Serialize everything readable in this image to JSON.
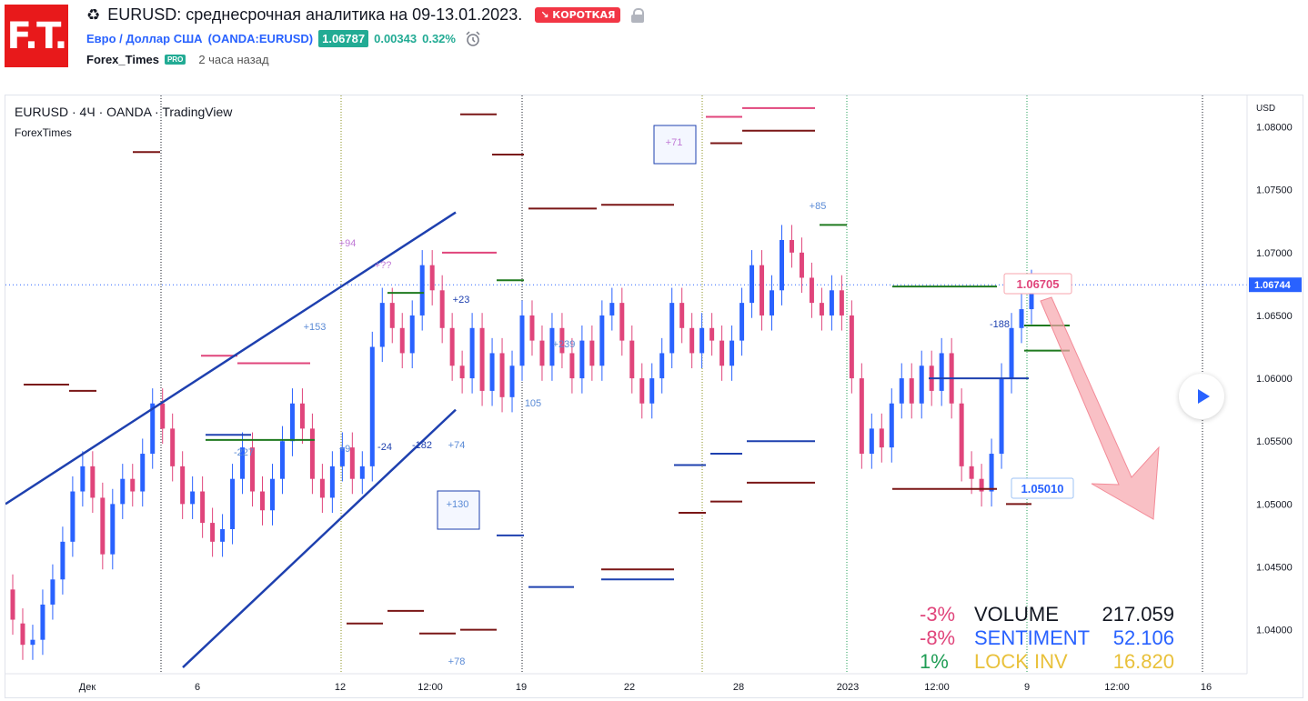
{
  "header": {
    "logo_text": "F.T.",
    "recycle_icon": "♻",
    "title": "EURUSD: среднесрочная аналитика на 09-13.01.2023.",
    "badge": "↘ КОРОТКАЯ",
    "symbol_name": "Евро / Доллар США",
    "symbol_code": "(OANDA:EURUSD)",
    "price": "1.06787",
    "change": "0.00343",
    "change_pct": "0.32%",
    "author": "Forex_Times",
    "pro_badge": "PRO",
    "time_ago": "2 часа назад"
  },
  "chart": {
    "legend_title": "EURUSD · 4Ч · OANDA · TradingView",
    "legend_sub": "ForexTimes",
    "currency": "USD",
    "current_price_label": "1.06744",
    "callout_high": "1.06705",
    "callout_low": "1.05010",
    "colors": {
      "up": "#2962ff",
      "down": "#e0457b",
      "callout_arrow": "#f7a5ad",
      "trendline": "#1e40af"
    }
  },
  "chart_data": {
    "type": "candlestick",
    "title": "EURUSD · 4Ч · OANDA · TradingView",
    "y_axis_label": "USD",
    "ylim": [
      1.0365,
      1.0825
    ],
    "y_ticks": [
      "1.08000",
      "1.07500",
      "1.07000",
      "1.06500",
      "1.06000",
      "1.05500",
      "1.05000",
      "1.04500",
      "1.04000"
    ],
    "x_ticks": [
      "Дек",
      "6",
      "12",
      "12:00",
      "19",
      "22",
      "28",
      "2023",
      "12:00",
      "9",
      "12:00",
      "16"
    ],
    "last_price": 1.06744,
    "levels_marked": [
      1.06705,
      1.0501
    ],
    "annotations": [
      "+153",
      "+94",
      "+??",
      "+71",
      "+85",
      "-188",
      "+130",
      "+74",
      "+78",
      "-182",
      "-227",
      "+23",
      "+239",
      "105",
      "+9",
      "-24"
    ],
    "stats": [
      {
        "pct": "-3%",
        "label": "VOLUME",
        "value": "217.059"
      },
      {
        "pct": "-8%",
        "label": "SENTIMENT",
        "value": "52.106"
      },
      {
        "pct": "1%",
        "label": "LOCK INV",
        "value": "16.820"
      }
    ]
  }
}
